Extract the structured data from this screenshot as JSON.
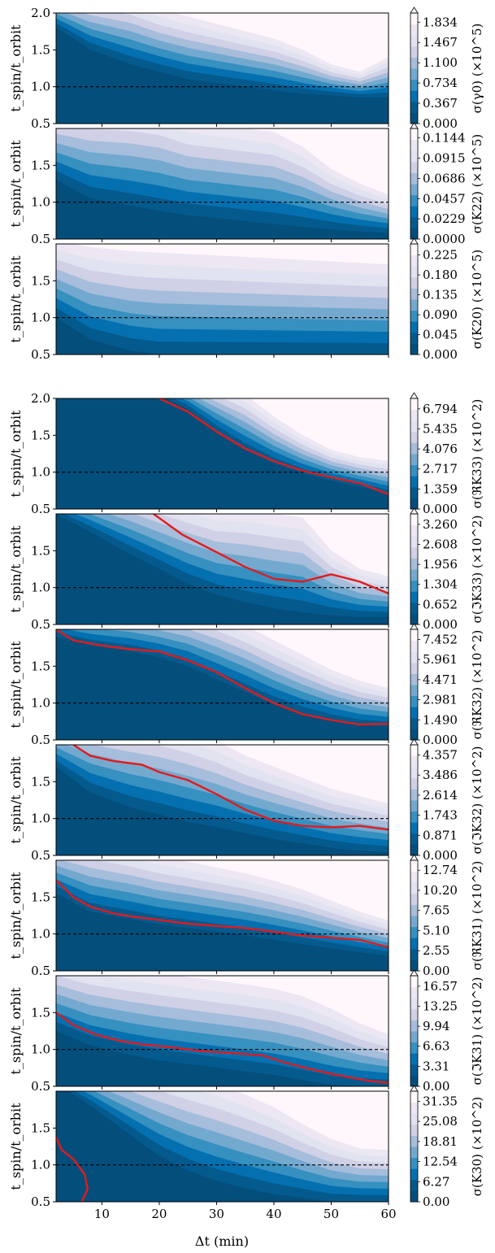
{
  "figure": {
    "xlabel": "Δt (min)",
    "ylabel": "t_spin/t_orbit",
    "xlim": [
      2,
      60
    ],
    "x_ticks": [
      "10",
      "20",
      "30",
      "40",
      "50",
      "60"
    ],
    "x_tick_values": [
      10,
      20,
      30,
      40,
      50,
      60
    ],
    "colormap": "PuBu_r",
    "ratio_line_value": 1.0,
    "ratio_line_style": "black dashed",
    "threshold_curve_color": "#e41a1c"
  },
  "chart_data": [
    {
      "type": "heatmap",
      "ylim": [
        0.5,
        2.0
      ],
      "y_ticks": [
        "0.5",
        "1.0",
        "1.5",
        "2.0"
      ],
      "colorbar_label": "σ(γ0) (×10^5)",
      "colorbar_ticks": [
        "0.000",
        "0.367",
        "0.734",
        "1.100",
        "1.467",
        "1.834"
      ],
      "colorbar_max": 2.0,
      "contour_boundaries": {
        "x": [
          2,
          8,
          15,
          20,
          25,
          30,
          35,
          40,
          45,
          50,
          55,
          60
        ],
        "ratios": [
          0.1,
          0.2,
          0.3,
          0.4,
          0.5,
          0.6,
          0.7,
          0.8,
          0.9
        ],
        "lowest_ratio_y": [
          1.8,
          1.5,
          1.3,
          1.2,
          1.1,
          1.05,
          1.0,
          0.95,
          0.9,
          0.88,
          0.85,
          0.85
        ],
        "highest_ratio_y": [
          2.3,
          2.25,
          2.2,
          2.05,
          1.95,
          1.85,
          1.75,
          1.65,
          1.5,
          1.3,
          1.2,
          1.4
        ]
      }
    },
    {
      "type": "heatmap",
      "ylim": [
        0.5,
        2.0
      ],
      "y_ticks": [
        "0.5",
        "1.0",
        "1.5"
      ],
      "colorbar_label": "σ(K22) (×10^5)",
      "colorbar_ticks": [
        "0.0000",
        "0.0229",
        "0.0457",
        "0.0686",
        "0.0915",
        "0.1144"
      ],
      "colorbar_max": 0.125,
      "contour_boundaries": {
        "x": [
          2,
          8,
          15,
          20,
          25,
          30,
          35,
          40,
          45,
          50,
          55,
          60
        ],
        "ratios": [
          0.1,
          0.2,
          0.3,
          0.4,
          0.5,
          0.6,
          0.7,
          0.8,
          0.9
        ],
        "lowest_ratio_y": [
          1.3,
          1.05,
          0.95,
          0.88,
          0.82,
          0.78,
          0.74,
          0.7,
          0.66,
          0.63,
          0.6,
          0.58
        ],
        "highest_ratio_y": [
          2.3,
          2.3,
          2.3,
          2.25,
          2.1,
          2.05,
          2.0,
          1.95,
          1.75,
          1.45,
          1.25,
          1.1
        ]
      }
    },
    {
      "type": "heatmap",
      "ylim": [
        0.5,
        2.0
      ],
      "y_ticks": [
        "0.5",
        "1.0",
        "1.5"
      ],
      "colorbar_label": "σ(K20) (×10^5)",
      "colorbar_ticks": [
        "0.000",
        "0.045",
        "0.090",
        "0.135",
        "0.180",
        "0.225"
      ],
      "colorbar_max": 0.25,
      "contour_boundaries": {
        "x": [
          2,
          8,
          15,
          20,
          25,
          30,
          35,
          40,
          45,
          50,
          55,
          60
        ],
        "ratios": [
          0.1,
          0.2,
          0.3,
          0.4,
          0.5,
          0.6,
          0.7,
          0.8,
          0.9
        ],
        "lowest_ratio_y": [
          1.0,
          0.7,
          0.55,
          0.5,
          0.5,
          0.5,
          0.5,
          0.5,
          0.5,
          0.5,
          0.5,
          0.5
        ],
        "highest_ratio_y": [
          2.05,
          1.95,
          1.9,
          1.88,
          1.86,
          1.84,
          1.82,
          1.8,
          1.78,
          1.76,
          1.74,
          1.72
        ]
      }
    },
    {
      "type": "heatmap",
      "ylim": [
        0.5,
        2.0
      ],
      "y_ticks": [
        "0.5",
        "1.0",
        "1.5",
        "2.0"
      ],
      "colorbar_label": "σ(ℜK33) (×10^2)",
      "colorbar_ticks": [
        "0.000",
        "1.359",
        "2.717",
        "4.076",
        "5.435",
        "6.794"
      ],
      "colorbar_max": 7.5,
      "threshold_curve": {
        "x": [
          20,
          25,
          30,
          35,
          40,
          45,
          50,
          55,
          60
        ],
        "y": [
          2.0,
          1.82,
          1.55,
          1.32,
          1.15,
          1.02,
          0.93,
          0.85,
          0.7
        ]
      },
      "contour_boundaries": {
        "x": [
          2,
          8,
          15,
          20,
          25,
          30,
          35,
          40,
          45,
          50,
          55,
          60
        ],
        "ratios": [
          0.1,
          0.2,
          0.3,
          0.4,
          0.5,
          0.6,
          0.7,
          0.8,
          0.9
        ],
        "lowest_ratio_y": [
          2.1,
          2.1,
          2.1,
          2.05,
          1.85,
          1.55,
          1.3,
          1.12,
          0.98,
          0.88,
          0.8,
          0.7
        ],
        "highest_ratio_y": [
          2.4,
          2.4,
          2.4,
          2.35,
          2.3,
          2.2,
          2.05,
          1.75,
          1.5,
          1.3,
          1.2,
          1.15
        ]
      }
    },
    {
      "type": "heatmap",
      "ylim": [
        0.5,
        2.0
      ],
      "y_ticks": [
        "0.5",
        "1.0",
        "1.5"
      ],
      "colorbar_label": "σ(ℑK33) (×10^2)",
      "colorbar_ticks": [
        "0.000",
        "0.652",
        "1.304",
        "1.956",
        "2.608",
        "3.260"
      ],
      "colorbar_max": 3.6,
      "threshold_curve": {
        "x": [
          19,
          24,
          30,
          35,
          40,
          45,
          50,
          55,
          60
        ],
        "y": [
          2.0,
          1.72,
          1.48,
          1.28,
          1.12,
          1.08,
          1.18,
          1.08,
          0.92
        ]
      },
      "contour_boundaries": {
        "x": [
          2,
          8,
          15,
          20,
          25,
          30,
          35,
          40,
          45,
          50,
          55,
          60
        ],
        "ratios": [
          0.1,
          0.2,
          0.3,
          0.4,
          0.5,
          0.6,
          0.7,
          0.8,
          0.9
        ],
        "lowest_ratio_y": [
          2.0,
          1.75,
          1.45,
          1.25,
          1.05,
          0.9,
          0.8,
          0.72,
          0.66,
          0.62,
          0.6,
          0.6
        ],
        "highest_ratio_y": [
          2.4,
          2.4,
          2.35,
          2.25,
          2.15,
          2.05,
          2.05,
          2.0,
          1.95,
          1.5,
          1.25,
          1.15
        ]
      }
    },
    {
      "type": "heatmap",
      "ylim": [
        0.5,
        2.0
      ],
      "y_ticks": [
        "0.5",
        "1.0",
        "1.5"
      ],
      "colorbar_label": "σ(ℜK32) (×10^2)",
      "colorbar_ticks": [
        "0.000",
        "1.490",
        "2.981",
        "4.471",
        "5.961",
        "7.452"
      ],
      "colorbar_max": 8.2,
      "threshold_curve": {
        "x": [
          2,
          5,
          10,
          15,
          20,
          25,
          30,
          35,
          40,
          45,
          50,
          55,
          60
        ],
        "y": [
          2.0,
          1.85,
          1.78,
          1.73,
          1.7,
          1.58,
          1.42,
          1.2,
          1.0,
          0.85,
          0.77,
          0.71,
          0.72
        ]
      },
      "contour_boundaries": {
        "x": [
          2,
          8,
          15,
          20,
          25,
          30,
          35,
          40,
          45,
          50,
          55,
          60
        ],
        "ratios": [
          0.1,
          0.2,
          0.3,
          0.4,
          0.5,
          0.6,
          0.7,
          0.8,
          0.9
        ],
        "lowest_ratio_y": [
          1.9,
          1.78,
          1.7,
          1.62,
          1.5,
          1.32,
          1.15,
          0.98,
          0.85,
          0.76,
          0.7,
          0.68
        ],
        "highest_ratio_y": [
          2.4,
          2.4,
          2.4,
          2.35,
          2.3,
          2.2,
          2.05,
          1.85,
          1.65,
          1.45,
          1.3,
          1.2
        ]
      }
    },
    {
      "type": "heatmap",
      "ylim": [
        0.5,
        2.0
      ],
      "y_ticks": [
        "0.5",
        "1.0",
        "1.5"
      ],
      "colorbar_label": "σ(ℑK32) (×10^2)",
      "colorbar_ticks": [
        "0.000",
        "0.871",
        "1.743",
        "2.614",
        "3.486",
        "4.357"
      ],
      "colorbar_max": 4.8,
      "threshold_curve": {
        "x": [
          5,
          8,
          12,
          17,
          20,
          25,
          30,
          35,
          40,
          45,
          50,
          55,
          60
        ],
        "y": [
          2.0,
          1.85,
          1.78,
          1.73,
          1.63,
          1.52,
          1.33,
          1.12,
          0.97,
          0.9,
          0.88,
          0.9,
          0.85
        ]
      },
      "contour_boundaries": {
        "x": [
          2,
          8,
          15,
          20,
          25,
          30,
          35,
          40,
          45,
          50,
          55,
          60
        ],
        "ratios": [
          0.1,
          0.2,
          0.3,
          0.4,
          0.5,
          0.6,
          0.7,
          0.8,
          0.9
        ],
        "lowest_ratio_y": [
          1.7,
          1.35,
          1.15,
          1.05,
          0.95,
          0.88,
          0.8,
          0.72,
          0.66,
          0.6,
          0.56,
          0.54
        ],
        "highest_ratio_y": [
          2.4,
          2.4,
          2.35,
          2.3,
          2.2,
          2.05,
          1.85,
          1.7,
          1.55,
          1.4,
          1.3,
          1.2
        ]
      }
    },
    {
      "type": "heatmap",
      "ylim": [
        0.5,
        2.0
      ],
      "y_ticks": [
        "0.5",
        "1.0",
        "1.5"
      ],
      "colorbar_label": "σ(ℜK31) (×10^2)",
      "colorbar_ticks": [
        "0.00",
        "2.55",
        "5.10",
        "7.65",
        "10.20",
        "12.74"
      ],
      "colorbar_max": 14.0,
      "threshold_curve": {
        "x": [
          2,
          5,
          8,
          12,
          15,
          20,
          25,
          30,
          35,
          40,
          45,
          50,
          55,
          60
        ],
        "y": [
          1.73,
          1.5,
          1.37,
          1.28,
          1.24,
          1.19,
          1.14,
          1.11,
          1.08,
          1.03,
          0.98,
          0.95,
          0.92,
          0.82
        ]
      },
      "contour_boundaries": {
        "x": [
          2,
          8,
          15,
          20,
          25,
          30,
          35,
          40,
          45,
          50,
          55,
          60
        ],
        "ratios": [
          0.1,
          0.2,
          0.3,
          0.4,
          0.5,
          0.6,
          0.7,
          0.8,
          0.9
        ],
        "lowest_ratio_y": [
          1.55,
          1.3,
          1.2,
          1.13,
          1.08,
          1.03,
          0.98,
          0.92,
          0.86,
          0.8,
          0.75,
          0.7
        ],
        "highest_ratio_y": [
          2.3,
          2.25,
          2.15,
          2.05,
          1.98,
          1.9,
          1.82,
          1.72,
          1.6,
          1.45,
          1.3,
          1.18
        ]
      }
    },
    {
      "type": "heatmap",
      "ylim": [
        0.5,
        2.0
      ],
      "y_ticks": [
        "0.5",
        "1.0",
        "1.5"
      ],
      "colorbar_label": "σ(ℑK31) (×10^2)",
      "colorbar_ticks": [
        "0.00",
        "3.31",
        "6.63",
        "9.94",
        "13.25",
        "16.57"
      ],
      "colorbar_max": 18.3,
      "threshold_curve": {
        "x": [
          2,
          5,
          9,
          13,
          17,
          22,
          27,
          33,
          38,
          42,
          46,
          50,
          54,
          57,
          60
        ],
        "y": [
          1.5,
          1.33,
          1.2,
          1.12,
          1.07,
          1.03,
          0.98,
          0.95,
          0.92,
          0.82,
          0.74,
          0.67,
          0.61,
          0.57,
          0.55
        ]
      },
      "contour_boundaries": {
        "x": [
          2,
          8,
          15,
          20,
          25,
          30,
          35,
          40,
          45,
          50,
          55,
          60
        ],
        "ratios": [
          0.1,
          0.2,
          0.3,
          0.4,
          0.5,
          0.6,
          0.7,
          0.8,
          0.9
        ],
        "lowest_ratio_y": [
          1.25,
          1.05,
          0.92,
          0.85,
          0.8,
          0.75,
          0.7,
          0.65,
          0.58,
          0.52,
          0.5,
          0.5
        ],
        "highest_ratio_y": [
          2.25,
          2.15,
          2.08,
          2.03,
          1.98,
          1.93,
          1.88,
          1.82,
          1.72,
          1.55,
          1.35,
          1.2
        ]
      }
    },
    {
      "type": "heatmap",
      "ylim": [
        0.5,
        2.0
      ],
      "y_ticks": [
        "0.5",
        "1.0",
        "1.5"
      ],
      "colorbar_label": "σ(K30) (×10^2)",
      "colorbar_ticks": [
        "0.00",
        "6.27",
        "12.54",
        "18.81",
        "25.08",
        "31.35"
      ],
      "colorbar_max": 34.5,
      "threshold_curve": {
        "x": [
          2,
          3,
          5,
          7,
          7.5,
          6.5
        ],
        "y": [
          1.38,
          1.2,
          1.08,
          0.87,
          0.67,
          0.5
        ]
      },
      "contour_boundaries": {
        "x": [
          2,
          8,
          15,
          20,
          25,
          30,
          35,
          40,
          45,
          50,
          55,
          60
        ],
        "ratios": [
          0.1,
          0.2,
          0.3,
          0.4,
          0.5,
          0.6,
          0.7,
          0.8,
          0.9
        ],
        "lowest_ratio_y": [
          2.1,
          1.8,
          1.4,
          1.12,
          0.92,
          0.78,
          0.68,
          0.6,
          0.55,
          0.5,
          0.5,
          0.5
        ],
        "highest_ratio_y": [
          2.4,
          2.4,
          2.35,
          2.3,
          2.2,
          2.1,
          1.95,
          1.78,
          1.55,
          1.35,
          1.22,
          1.2
        ]
      }
    }
  ]
}
